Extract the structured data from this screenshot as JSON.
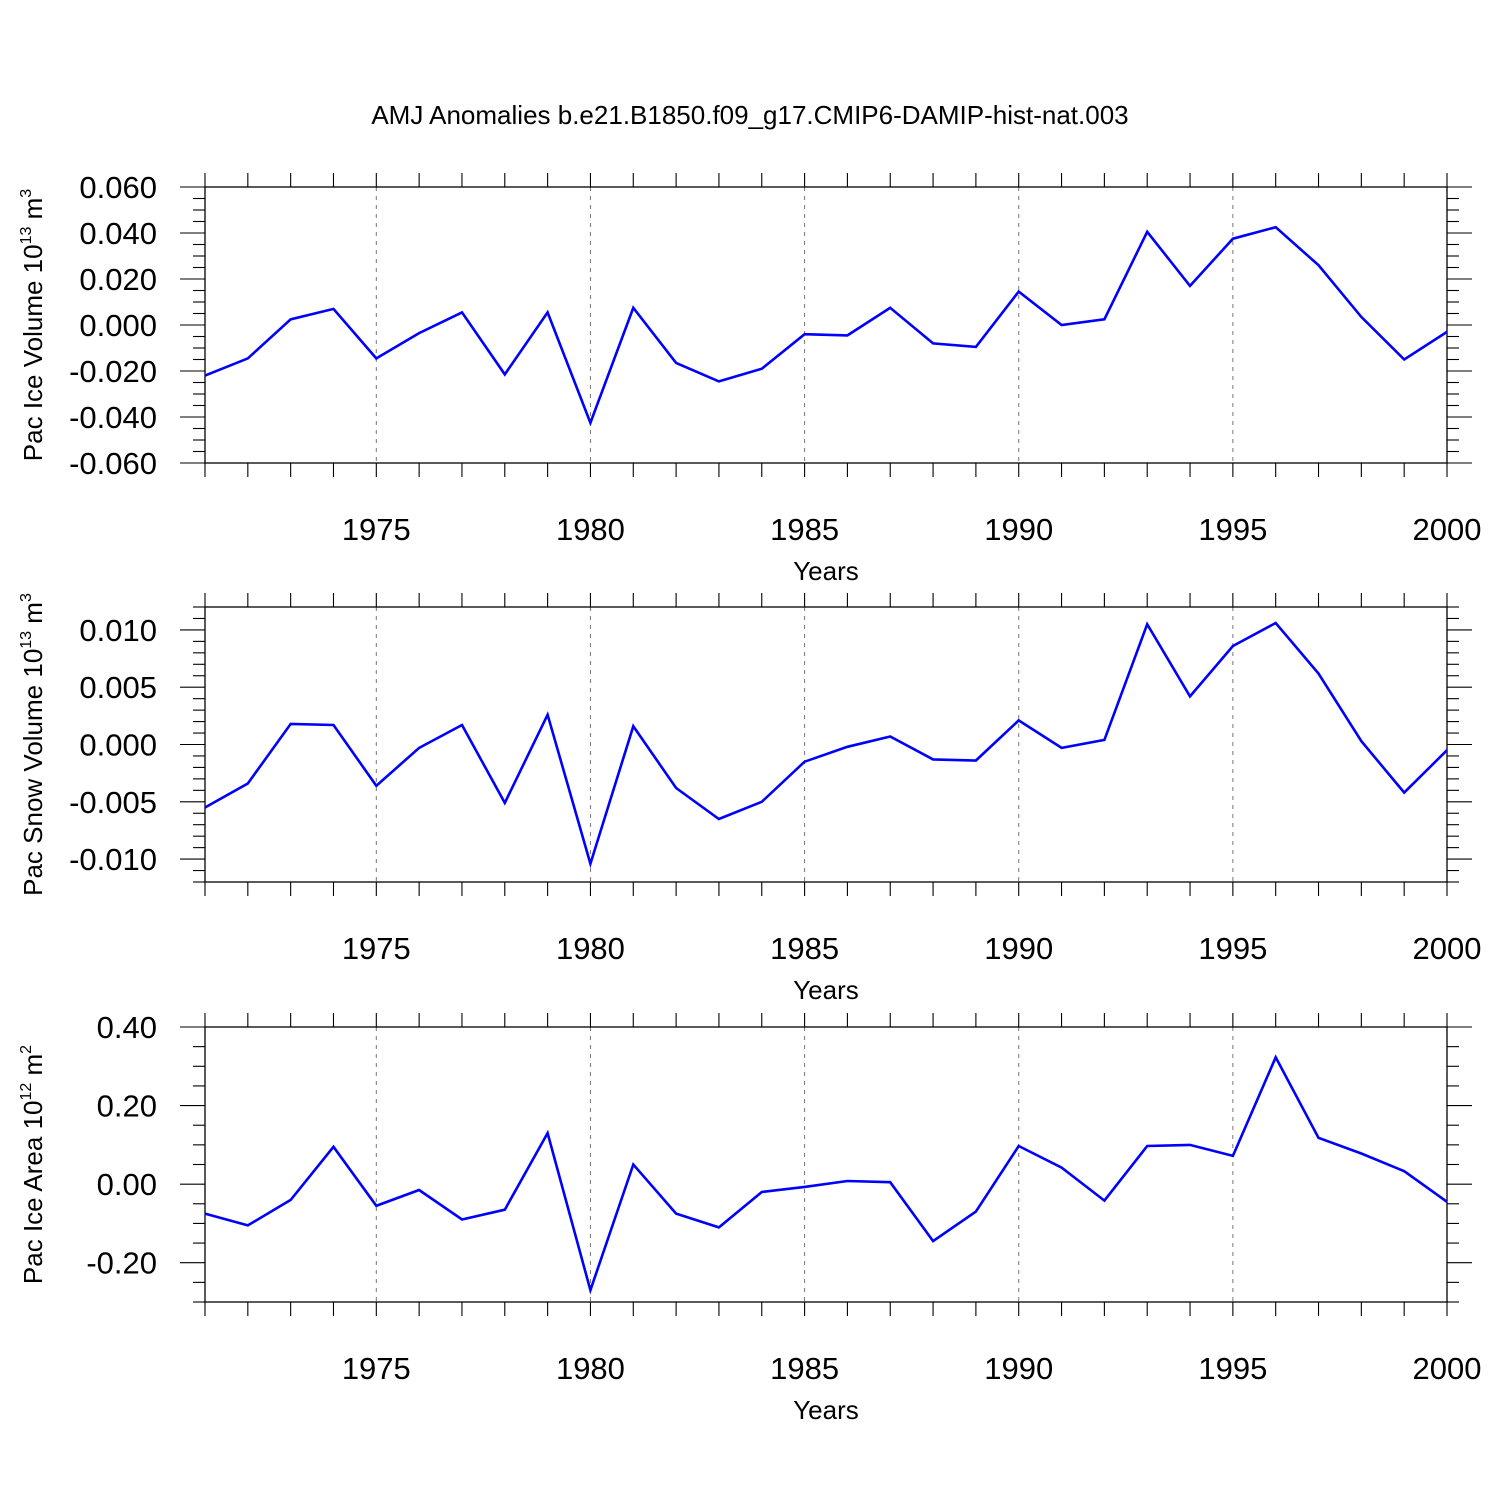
{
  "title": "AMJ Anomalies b.e21.B1850.f09_g17.CMIP6-DAMIP-hist-nat.003",
  "line_color": "#0000ff",
  "chart_data": [
    {
      "type": "line",
      "ylabel": {
        "text": "Pac Ice Volume 10",
        "exp": "13",
        "unit": " m",
        "unit_exp": "3"
      },
      "xlabel": "Years",
      "xlim": [
        1971,
        2000
      ],
      "ylim": [
        -0.06,
        0.06
      ],
      "yticks": [
        -0.06,
        -0.04,
        -0.02,
        0.0,
        0.02,
        0.04,
        0.06
      ],
      "ytick_labels": [
        "-0.060",
        "-0.040",
        "-0.020",
        "0.000",
        "0.020",
        "0.040",
        "0.060"
      ],
      "yminor_step": 0.005,
      "xticks": [
        1975,
        1980,
        1985,
        1990,
        1995,
        2000
      ],
      "xtick_labels": [
        "1975",
        "1980",
        "1985",
        "1990",
        "1995",
        "2000"
      ],
      "grid_x": [
        1975,
        1980,
        1985,
        1990,
        1995
      ],
      "x": [
        1971,
        1972,
        1973,
        1974,
        1975,
        1976,
        1977,
        1978,
        1979,
        1980,
        1981,
        1982,
        1983,
        1984,
        1985,
        1986,
        1987,
        1988,
        1989,
        1990,
        1991,
        1992,
        1993,
        1994,
        1995,
        1996,
        1997,
        1998,
        1999,
        2000
      ],
      "values": [
        -0.022,
        -0.0145,
        0.0025,
        0.007,
        -0.0145,
        -0.0035,
        0.0055,
        -0.0215,
        0.0055,
        -0.0425,
        0.0075,
        -0.0165,
        -0.0245,
        -0.019,
        -0.004,
        -0.0045,
        0.0075,
        -0.008,
        -0.0095,
        0.0145,
        0.0,
        0.0025,
        0.0405,
        0.017,
        0.0375,
        0.0425,
        0.026,
        0.0035,
        -0.015,
        -0.003
      ]
    },
    {
      "type": "line",
      "ylabel": {
        "text": "Pac Snow Volume 10",
        "exp": "13",
        "unit": " m",
        "unit_exp": "3"
      },
      "xlabel": "Years",
      "xlim": [
        1971,
        2000
      ],
      "ylim": [
        -0.012,
        0.012
      ],
      "yticks": [
        -0.01,
        -0.005,
        0.0,
        0.005,
        0.01
      ],
      "ytick_labels": [
        "-0.010",
        "-0.005",
        "0.000",
        "0.005",
        "0.010"
      ],
      "yminor_step": 0.001,
      "xticks": [
        1975,
        1980,
        1985,
        1990,
        1995,
        2000
      ],
      "xtick_labels": [
        "1975",
        "1980",
        "1985",
        "1990",
        "1995",
        "2000"
      ],
      "grid_x": [
        1975,
        1980,
        1985,
        1990,
        1995
      ],
      "x": [
        1971,
        1972,
        1973,
        1974,
        1975,
        1976,
        1977,
        1978,
        1979,
        1980,
        1981,
        1982,
        1983,
        1984,
        1985,
        1986,
        1987,
        1988,
        1989,
        1990,
        1991,
        1992,
        1993,
        1994,
        1995,
        1996,
        1997,
        1998,
        1999,
        2000
      ],
      "values": [
        -0.0055,
        -0.0034,
        0.0018,
        0.0017,
        -0.0036,
        -0.0003,
        0.0017,
        -0.0051,
        0.0026,
        -0.0104,
        0.0016,
        -0.0038,
        -0.0065,
        -0.005,
        -0.0015,
        -0.0002,
        0.0007,
        -0.0013,
        -0.0014,
        0.0021,
        -0.0003,
        0.0004,
        0.0105,
        0.0042,
        0.0086,
        0.0106,
        0.0062,
        0.0003,
        -0.0042,
        -0.0005
      ]
    },
    {
      "type": "line",
      "ylabel": {
        "text": "Pac Ice Area 10",
        "exp": "12",
        "unit": " m",
        "unit_exp": "2"
      },
      "xlabel": "Years",
      "xlim": [
        1971,
        2000
      ],
      "ylim": [
        -0.3,
        0.4
      ],
      "yticks": [
        -0.2,
        0.0,
        0.2,
        0.4
      ],
      "ytick_labels": [
        "-0.20",
        "0.00",
        "0.20",
        "0.40"
      ],
      "yminor_step": 0.05,
      "xticks": [
        1975,
        1980,
        1985,
        1990,
        1995,
        2000
      ],
      "xtick_labels": [
        "1975",
        "1980",
        "1985",
        "1990",
        "1995",
        "2000"
      ],
      "grid_x": [
        1975,
        1980,
        1985,
        1990,
        1995
      ],
      "x": [
        1971,
        1972,
        1973,
        1974,
        1975,
        1976,
        1977,
        1978,
        1979,
        1980,
        1981,
        1982,
        1983,
        1984,
        1985,
        1986,
        1987,
        1988,
        1989,
        1990,
        1991,
        1992,
        1993,
        1994,
        1995,
        1996,
        1997,
        1998,
        1999,
        2000
      ],
      "values": [
        -0.075,
        -0.105,
        -0.04,
        0.095,
        -0.055,
        -0.015,
        -0.09,
        -0.065,
        0.13,
        -0.27,
        0.05,
        -0.075,
        -0.11,
        -0.02,
        -0.007,
        0.008,
        0.005,
        -0.145,
        -0.07,
        0.097,
        0.042,
        -0.042,
        0.097,
        0.1,
        0.072,
        0.323,
        0.118,
        0.078,
        0.033,
        -0.045
      ]
    }
  ]
}
